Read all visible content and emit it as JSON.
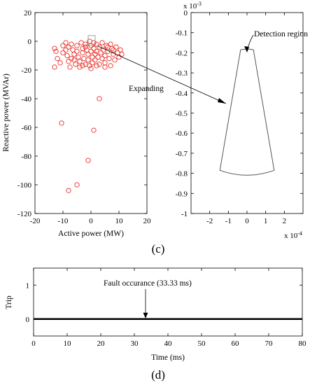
{
  "figure_captions": [
    "(c)",
    "(d)"
  ],
  "chart_data": [
    {
      "type": "scatter",
      "panel": "c-left",
      "xlabel": "Active power (MW)",
      "ylabel": "Reactive power (MVAr)",
      "xlim": [
        -20,
        20
      ],
      "ylim": [
        -120,
        20
      ],
      "xticks": [
        -20,
        -10,
        0,
        10,
        20
      ],
      "yticks": [
        20,
        0,
        -20,
        -40,
        -60,
        -80,
        -100,
        -120
      ],
      "grid": false,
      "marker": "circle-open",
      "color": "#e8302a",
      "points": [
        [
          -13,
          -5
        ],
        [
          -12.5,
          -7
        ],
        [
          -12,
          -12
        ],
        [
          -13,
          -18
        ],
        [
          -11,
          -15
        ],
        [
          -10,
          -3
        ],
        [
          -9,
          -1
        ],
        [
          -9,
          -6
        ],
        [
          -8.5,
          -10
        ],
        [
          -8,
          -14
        ],
        [
          -7.5,
          -18
        ],
        [
          -7,
          -2
        ],
        [
          -6.5,
          -6
        ],
        [
          -6,
          -9
        ],
        [
          -6,
          -13
        ],
        [
          -5.5,
          -16
        ],
        [
          -5,
          -3
        ],
        [
          -5,
          -7
        ],
        [
          -4.5,
          -11
        ],
        [
          -4,
          -14
        ],
        [
          -4,
          -18
        ],
        [
          -3.5,
          -1
        ],
        [
          -3,
          -5
        ],
        [
          -3,
          -8
        ],
        [
          -2.5,
          -12
        ],
        [
          -2,
          -16
        ],
        [
          -2,
          -2
        ],
        [
          -1.5,
          -6
        ],
        [
          -1,
          -9
        ],
        [
          -1,
          -13
        ],
        [
          -0.5,
          -17
        ],
        [
          -0.5,
          0
        ],
        [
          0,
          -3
        ],
        [
          0,
          -7
        ],
        [
          0.5,
          -11
        ],
        [
          0.5,
          -15
        ],
        [
          1,
          -1
        ],
        [
          1,
          -5
        ],
        [
          1.5,
          -9
        ],
        [
          1.5,
          -13
        ],
        [
          2,
          -2
        ],
        [
          2,
          -7
        ],
        [
          2.5,
          -11
        ],
        [
          3,
          -16
        ],
        [
          3,
          -4
        ],
        [
          3.5,
          -8
        ],
        [
          4,
          -12
        ],
        [
          4,
          -1
        ],
        [
          4.5,
          -6
        ],
        [
          5,
          -10
        ],
        [
          5,
          -15
        ],
        [
          5.5,
          -3
        ],
        [
          6,
          -7
        ],
        [
          6.5,
          -12
        ],
        [
          7,
          -17
        ],
        [
          7,
          -2
        ],
        [
          7.5,
          -5
        ],
        [
          8,
          -9
        ],
        [
          8.5,
          -13
        ],
        [
          9,
          -4
        ],
        [
          9.5,
          -8
        ],
        [
          10,
          -11
        ],
        [
          10.5,
          -6
        ],
        [
          11,
          -9
        ],
        [
          -7,
          -12
        ],
        [
          -3,
          -17
        ],
        [
          0,
          -19
        ],
        [
          2,
          -17
        ],
        [
          5,
          -18
        ],
        [
          -10.5,
          -57
        ],
        [
          1,
          -62
        ],
        [
          3,
          -40
        ],
        [
          -1,
          -83
        ],
        [
          -8,
          -104
        ],
        [
          -5,
          -100
        ],
        [
          -10,
          -8
        ],
        [
          -8,
          -4
        ],
        [
          6,
          -4
        ],
        [
          8,
          -6
        ],
        [
          -2,
          -4
        ]
      ],
      "annotation": "Expanding",
      "zoom_box": {
        "x": [
          -1,
          1.5
        ],
        "y": [
          -3,
          4
        ]
      }
    },
    {
      "type": "line",
      "panel": "c-right",
      "y_multiplier": "x 10",
      "y_exponent": "-3",
      "x_multiplier": "x 10",
      "x_exponent": "-4",
      "xlim": [
        -3,
        3
      ],
      "ylim": [
        -1,
        0
      ],
      "xticks": [
        -2,
        -1,
        0,
        1,
        2
      ],
      "yticks": [
        0,
        -0.1,
        -0.2,
        -0.3,
        -0.4,
        -0.5,
        -0.6,
        -0.7,
        -0.8,
        -0.9,
        -1
      ],
      "ytick_labels": [
        "0",
        "-0.1",
        "-0.2",
        "-0.3",
        "-0.4",
        "-0.5",
        "-0.6",
        "-0.7",
        "-0.8",
        "-0.9",
        "-1"
      ],
      "grid": false,
      "annotation": "Detection region",
      "region": {
        "inner_radius": 0.185,
        "outer_radius": 0.785,
        "half_angle_deg": 10.5
      }
    },
    {
      "type": "line",
      "panel": "d",
      "xlabel": "Time (ms)",
      "ylabel": "Trip",
      "xlim": [
        0,
        80
      ],
      "ylim": [
        -0.5,
        1.5
      ],
      "xticks": [
        0,
        10,
        20,
        30,
        40,
        50,
        60,
        70,
        80
      ],
      "yticks": [
        1,
        0
      ],
      "series": [
        {
          "x": [
            0,
            80
          ],
          "y": [
            0,
            0
          ]
        }
      ],
      "annotation": "Fault occurance (33.33 ms)",
      "annotation_x": 33.33
    }
  ]
}
